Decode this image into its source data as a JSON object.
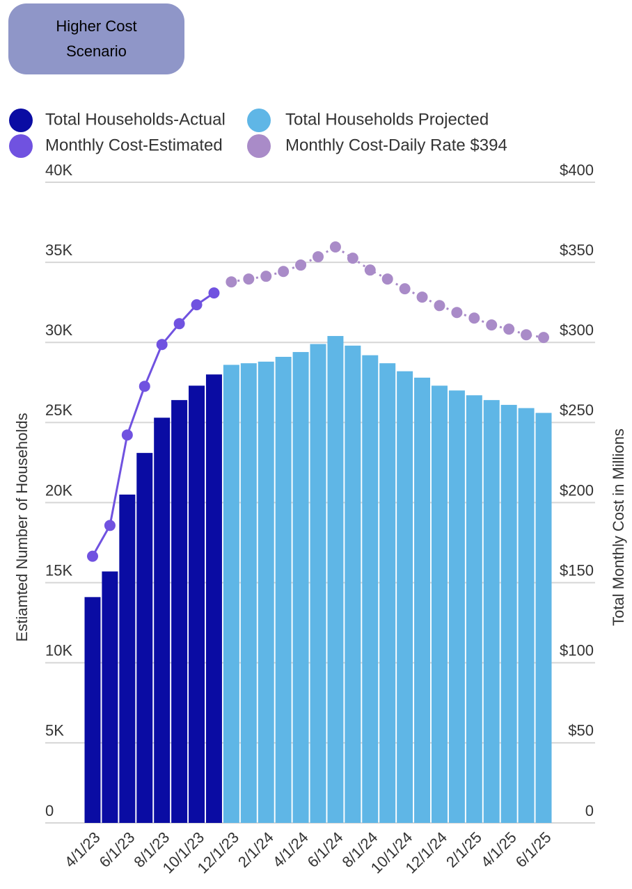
{
  "button": {
    "label": "Higher Cost Scenario"
  },
  "chart_data": {
    "type": "bar-line",
    "y_label": "Estiamted Number of Households",
    "y2_label": "Total Monthly Cost in Millions",
    "categories": [
      "4/1/23",
      null,
      "6/1/23",
      null,
      "8/1/23",
      null,
      "10/1/23",
      null,
      "12/1/23",
      null,
      "2/1/24",
      null,
      "4/1/24",
      null,
      "6/1/24",
      null,
      "8/1/24",
      null,
      "10/1/24",
      null,
      "12/1/24",
      null,
      "2/1/25",
      null,
      "4/1/25",
      null,
      "6/1/25"
    ],
    "series": [
      {
        "name": "Total Households-Actual",
        "color": "#0a0ca3",
        "kind": "bar",
        "values": [
          14100,
          15700,
          20500,
          23100,
          25300,
          26400,
          27300,
          28000,
          null,
          null,
          null,
          null,
          null,
          null,
          null,
          null,
          null,
          null,
          null,
          null,
          null,
          null,
          null,
          null,
          null,
          null,
          null
        ]
      },
      {
        "name": "Total Households Projected",
        "color": "#5fb6e6",
        "kind": "bar",
        "values": [
          null,
          null,
          null,
          null,
          null,
          null,
          null,
          null,
          28600,
          28700,
          28800,
          29100,
          29400,
          29900,
          30400,
          29800,
          29200,
          28700,
          28200,
          27800,
          27300,
          27000,
          26700,
          26400,
          26100,
          25900,
          25600
        ]
      },
      {
        "name": "Monthly Cost-Estimated",
        "color": "#7052e0",
        "kind": "line",
        "axis": "y2",
        "values": [
          166.5,
          185.7,
          242.2,
          272.6,
          298.7,
          311.7,
          323.5,
          330.9,
          null,
          null,
          null,
          null,
          null,
          null,
          null,
          null,
          null,
          null,
          null,
          null,
          null,
          null,
          null,
          null,
          null,
          null,
          null
        ]
      },
      {
        "name": "Monthly Cost-Daily Rate $394",
        "color": "#a98bc8",
        "kind": "dotted",
        "axis": "y2",
        "values": [
          null,
          null,
          null,
          null,
          null,
          null,
          null,
          null,
          337.8,
          339.6,
          341.3,
          344.3,
          348.3,
          353.5,
          359.6,
          352.6,
          345.2,
          339.6,
          333.5,
          328.3,
          323.0,
          318.7,
          315.2,
          310.9,
          308.3,
          304.8,
          303.1
        ]
      }
    ],
    "ylim": [
      0,
      40000
    ],
    "yticks": [
      0,
      {
        "value": 5000,
        "label": "5K"
      },
      {
        "value": 10000,
        "label": "10K"
      },
      {
        "value": 15000,
        "label": "15K"
      },
      {
        "value": 20000,
        "label": "20K"
      },
      {
        "value": 25000,
        "label": "25K"
      },
      {
        "value": 30000,
        "label": "30K"
      },
      {
        "value": 35000,
        "label": "35K"
      },
      {
        "value": 40000,
        "label": "40K"
      }
    ],
    "y2lim": [
      0,
      400
    ],
    "y2ticks": [
      0,
      {
        "value": 50,
        "label": "$50"
      },
      {
        "value": 100,
        "label": "$100"
      },
      {
        "value": 150,
        "label": "$150"
      },
      {
        "value": 200,
        "label": "$200"
      },
      {
        "value": 250,
        "label": "$250"
      },
      {
        "value": 300,
        "label": "$300"
      },
      {
        "value": 350,
        "label": "$350"
      },
      {
        "value": 400,
        "label": "$400"
      }
    ],
    "grid": true
  }
}
